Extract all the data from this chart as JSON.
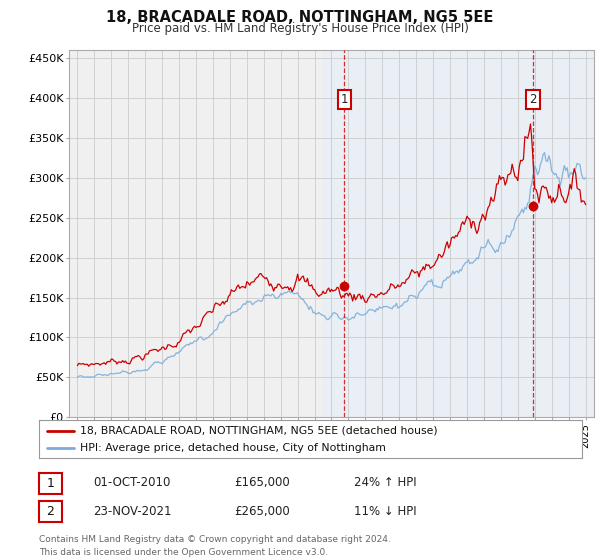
{
  "title": "18, BRACADALE ROAD, NOTTINGHAM, NG5 5EE",
  "subtitle": "Price paid vs. HM Land Registry's House Price Index (HPI)",
  "footnote": "Contains HM Land Registry data © Crown copyright and database right 2024.\nThis data is licensed under the Open Government Licence v3.0.",
  "legend_entries": [
    "18, BRACADALE ROAD, NOTTINGHAM, NG5 5EE (detached house)",
    "HPI: Average price, detached house, City of Nottingham"
  ],
  "annotation1": {
    "label": "1",
    "date": "01-OCT-2010",
    "price": "£165,000",
    "pct": "24% ↑ HPI"
  },
  "annotation2": {
    "label": "2",
    "date": "23-NOV-2021",
    "price": "£265,000",
    "pct": "11% ↓ HPI"
  },
  "sale1_x": 2010.75,
  "sale1_y": 165000,
  "sale2_x": 2021.9,
  "sale2_y": 265000,
  "ylim": [
    0,
    460000
  ],
  "xlim": [
    1994.5,
    2025.5
  ],
  "yticks": [
    0,
    50000,
    100000,
    150000,
    200000,
    250000,
    300000,
    350000,
    400000,
    450000
  ],
  "ytick_labels": [
    "£0",
    "£50K",
    "£100K",
    "£150K",
    "£200K",
    "£250K",
    "£300K",
    "£350K",
    "£400K",
    "£450K"
  ],
  "color_red": "#cc0000",
  "color_blue": "#7aaddb",
  "color_shading": "#ddeeff",
  "background_plot": "#f0f0f0",
  "background_fig": "#ffffff",
  "grid_color": "#cccccc",
  "shading_start": 2009.5
}
